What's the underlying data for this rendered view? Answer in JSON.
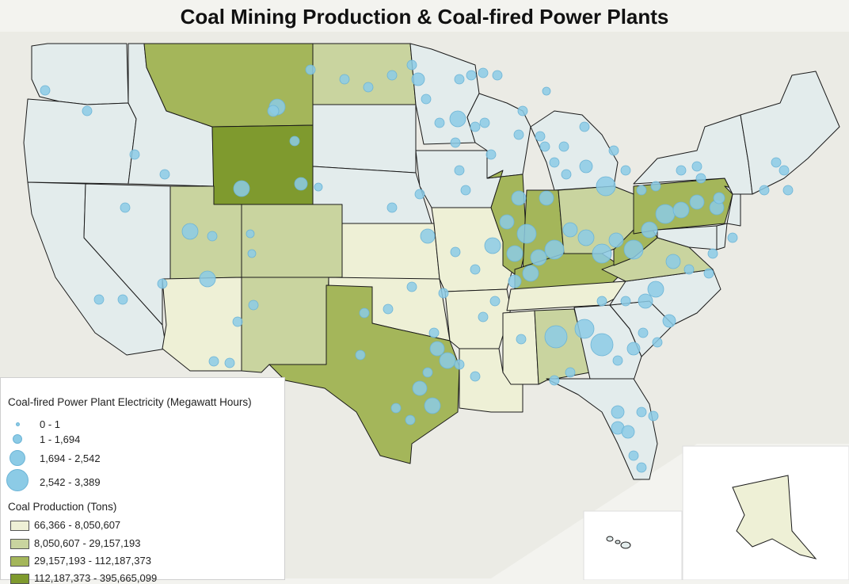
{
  "title": "Coal Mining Production & Coal-fired Power Plants",
  "colors": {
    "background": "#f3f3ef",
    "state_default": "#e3ecec",
    "state_border": "#1a1a1a",
    "plant_fill": "#8ccbe6",
    "plant_stroke": "#6cb4d6"
  },
  "legend": {
    "plants_title": "Coal-fired Power Plant Electricity (Megawatt Hours)",
    "plant_classes": [
      {
        "label": "0 - 1"
      },
      {
        "label": "1 - 1,694"
      },
      {
        "label": "1,694 - 2,542"
      },
      {
        "label": "2,542 - 3,389"
      }
    ],
    "coal_title": "Coal Production (Tons)",
    "coal_classes": [
      {
        "label": "66,366 - 8,050,607",
        "color": "#eef0d6"
      },
      {
        "label": "8,050,607 - 29,157,193",
        "color": "#c9d49f"
      },
      {
        "label": "29,157,193 - 112,187,373",
        "color": "#a4b65a"
      },
      {
        "label": "112,187,373 - 395,665,099",
        "color": "#7f9a2e"
      }
    ]
  },
  "states_by_class": {
    "none": [
      "Washington",
      "Oregon",
      "Idaho",
      "Nevada",
      "California",
      "South Dakota",
      "Nebraska",
      "Minnesota",
      "Iowa",
      "Wisconsin",
      "Michigan",
      "Georgia",
      "Florida",
      "South Carolina",
      "North Carolina",
      "New York",
      "New England",
      "Delaware",
      "New Jersey",
      "Maryland"
    ],
    "class1": [
      "Arizona",
      "Kansas",
      "Missouri",
      "Oklahoma",
      "Arkansas",
      "Louisiana",
      "Tennessee",
      "Mississippi",
      "Alaska"
    ],
    "class2": [
      "Utah",
      "Colorado",
      "New Mexico",
      "North Dakota",
      "Ohio",
      "Virginia",
      "Alabama"
    ],
    "class3": [
      "Montana",
      "Texas",
      "Illinois",
      "Indiana",
      "Kentucky",
      "West Virginia",
      "Pennsylvania"
    ],
    "class4": [
      "Wyoming"
    ]
  }
}
